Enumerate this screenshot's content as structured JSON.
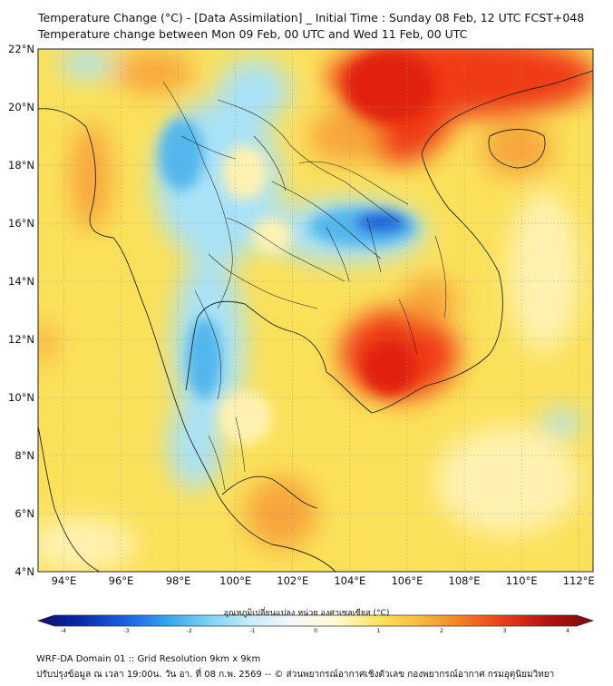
{
  "header": {
    "title": "Temperature Change (°C) - [Data Assimilation] _ Initial Time : Sunday 08 Feb, 12 UTC FCST+048",
    "subtitle": "Temperature change between Mon 09 Feb, 00 UTC and Wed 11 Feb, 00 UTC"
  },
  "map": {
    "lat_labels": [
      "22°N",
      "20°N",
      "18°N",
      "16°N",
      "14°N",
      "12°N",
      "10°N",
      "8°N",
      "6°N",
      "4°N"
    ],
    "lon_labels": [
      "94°E",
      "96°E",
      "98°E",
      "100°E",
      "102°E",
      "104°E",
      "106°E",
      "108°E",
      "110°E",
      "112°E"
    ],
    "colors": {
      "base": "#fbe15a",
      "warm": "#f7a53a",
      "hot": "#ef3b16",
      "very_hot": "#e02010",
      "cool": "#a9e2f7",
      "cold": "#52b7ec",
      "coldest": "#1f62d8",
      "pale": "#fff2b0",
      "coast": "#222222"
    }
  },
  "colorbar": {
    "label": "อุณหภูมิเปลี่ยนแปลง หน่วย องศาเซลเซียส (°C)",
    "ticks": [
      "-4",
      "-3",
      "-2",
      "-1",
      "0",
      "1",
      "2",
      "3",
      "4"
    ],
    "stops": [
      "#0a1070",
      "#0a2aa8",
      "#1a5ee0",
      "#35a3ea",
      "#7dd3f5",
      "#c8eef9",
      "#f7f7f7",
      "#fffad0",
      "#fbe35d",
      "#f7b83c",
      "#f17a25",
      "#e6381a",
      "#b11010",
      "#7a0a0a"
    ]
  },
  "footer": {
    "line1": "WRF-DA Domain 01 :: Grid Resolution 9km x 9km",
    "line2": "ปรับปรุงข้อมูล ณ เวลา 19:00น. วัน อา. ที่ 08 ก.พ. 2569 -- © ส่วนพยากรณ์อากาศเชิงตัวเลข กองพยากรณ์อากาศ กรมอุตุนิยมวิทยา"
  }
}
